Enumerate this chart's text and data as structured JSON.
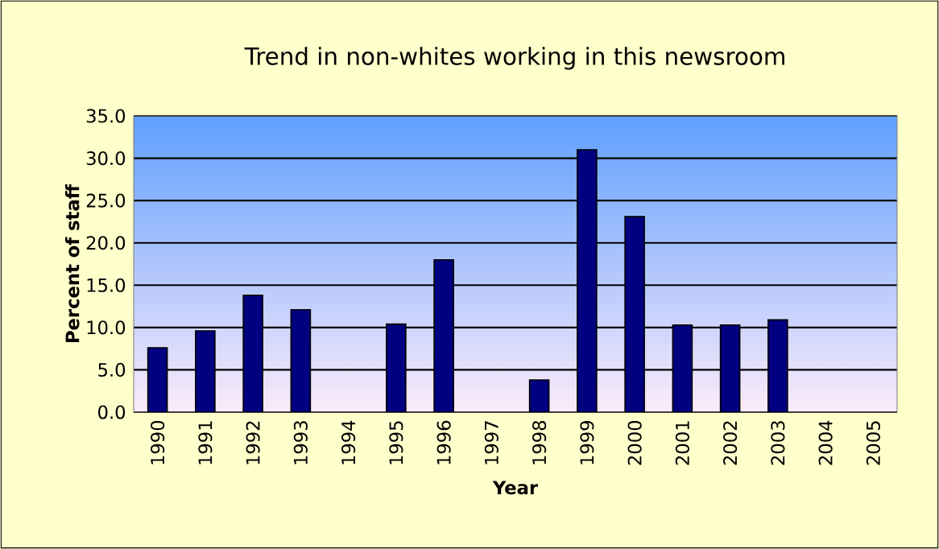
{
  "chart_data": {
    "type": "bar",
    "title": "Trend in non-whites working in this newsroom",
    "xlabel": "Year",
    "ylabel": "Percent of staff",
    "categories": [
      "1990",
      "1991",
      "1992",
      "1993",
      "1994",
      "1995",
      "1996",
      "1997",
      "1998",
      "1999",
      "2000",
      "2001",
      "2002",
      "2003",
      "2004",
      "2005"
    ],
    "values": [
      7.6,
      9.6,
      13.8,
      12.1,
      null,
      10.4,
      18.0,
      null,
      3.8,
      31.0,
      23.1,
      10.3,
      10.3,
      10.9,
      null,
      null
    ],
    "color": "#000080",
    "ylim": [
      0,
      35
    ],
    "yticks": [
      {
        "value": 0,
        "label": "0.0"
      },
      {
        "value": 5,
        "label": "5.0"
      },
      {
        "value": 10,
        "label": "10.0"
      },
      {
        "value": 15,
        "label": "15.0"
      },
      {
        "value": 20,
        "label": "20.0"
      },
      {
        "value": 25,
        "label": "25.0"
      },
      {
        "value": 30,
        "label": "30.0"
      },
      {
        "value": 35,
        "label": "35.0"
      }
    ],
    "grid": "y"
  }
}
